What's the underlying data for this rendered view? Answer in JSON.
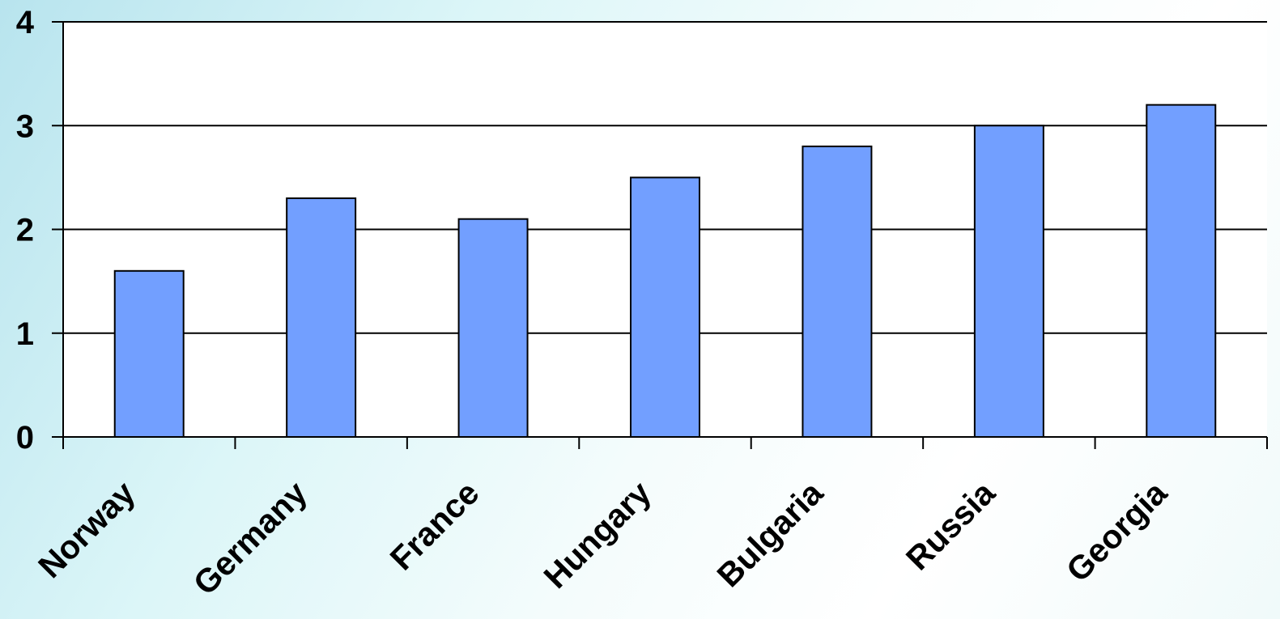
{
  "chart_data": {
    "type": "bar",
    "categories": [
      "Norway",
      "Germany",
      "France",
      "Hungary",
      "Bulgaria",
      "Russia",
      "Georgia"
    ],
    "values": [
      1.6,
      2.3,
      2.1,
      2.5,
      2.8,
      3.0,
      3.2
    ],
    "title": "",
    "xlabel": "",
    "ylabel": "",
    "ylim": [
      0,
      4
    ],
    "yticks": [
      "0",
      "1",
      "2",
      "3",
      "4"
    ],
    "grid": true,
    "legend": "none",
    "bar_color": "#729fff",
    "bar_outline_color": "#000000",
    "plot_background": "#ffffff"
  }
}
